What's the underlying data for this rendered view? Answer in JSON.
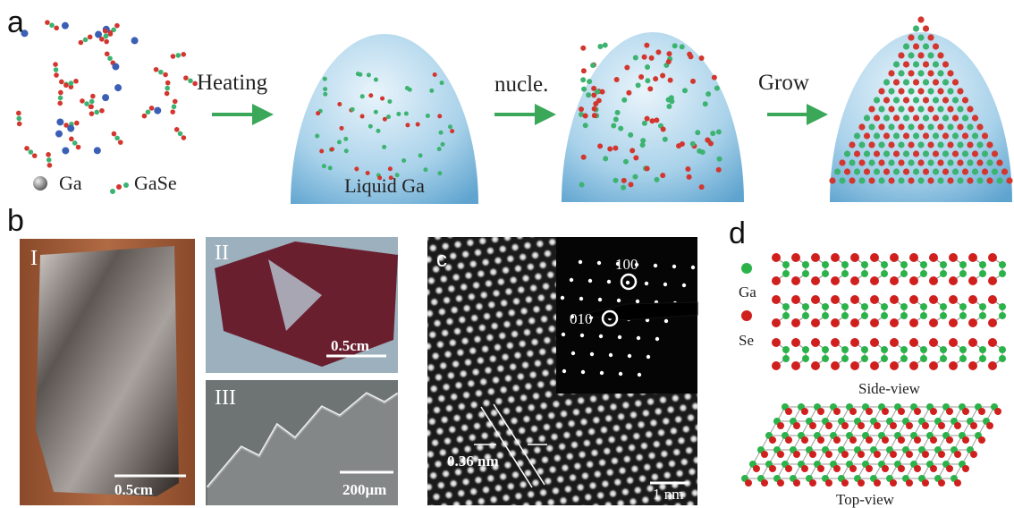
{
  "panel_a": {
    "label": "a",
    "steps": [
      "Heating",
      "nucle.",
      "Grow"
    ],
    "legend": [
      "Ga",
      "GaSe"
    ],
    "dome_label": "Liquid Ga"
  },
  "panel_b": {
    "label": "b",
    "images": [
      {
        "label": "I",
        "scale": "0.5cm"
      },
      {
        "label": "II",
        "scale": "0.5cm"
      },
      {
        "label": "III",
        "scale": "200μm"
      }
    ]
  },
  "panel_c": {
    "label": "c",
    "spots": [
      "100",
      "010"
    ],
    "spacing": "0.36 nm",
    "scale": "1 nm"
  },
  "panel_d": {
    "label": "d",
    "legend": [
      "Ga",
      "Se"
    ],
    "views": [
      "Side-view",
      "Top-view"
    ]
  }
}
